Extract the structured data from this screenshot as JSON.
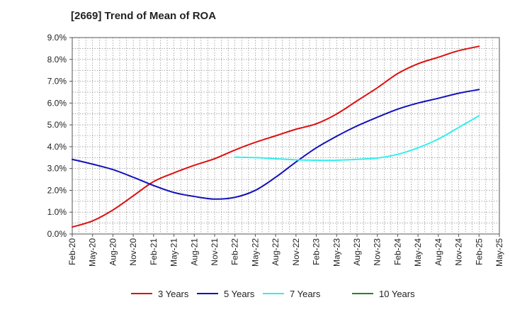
{
  "chart_data": {
    "type": "line",
    "title": "[2669]  Trend of Mean of ROA",
    "xlabel": "",
    "ylabel": "",
    "x_ticks": [
      "Feb-20",
      "May-20",
      "Aug-20",
      "Nov-20",
      "Feb-21",
      "May-21",
      "Aug-21",
      "Nov-21",
      "Feb-22",
      "May-22",
      "Aug-22",
      "Nov-22",
      "Feb-23",
      "May-23",
      "Aug-23",
      "Nov-23",
      "Feb-24",
      "May-24",
      "Aug-24",
      "Nov-24",
      "Feb-25",
      "May-25"
    ],
    "y_ticks": [
      "0.0%",
      "1.0%",
      "2.0%",
      "3.0%",
      "4.0%",
      "5.0%",
      "6.0%",
      "7.0%",
      "8.0%",
      "9.0%"
    ],
    "ylim": [
      0,
      9
    ],
    "grid": true,
    "legend_position": "bottom",
    "series": [
      {
        "name": "3 Years",
        "color": "#dd1111",
        "x": [
          "Feb-20",
          "May-20",
          "Aug-20",
          "Nov-20",
          "Feb-21",
          "May-21",
          "Aug-21",
          "Nov-21",
          "Feb-22",
          "May-22",
          "Aug-22",
          "Nov-22",
          "Feb-23",
          "May-23",
          "Aug-23",
          "Nov-23",
          "Feb-24",
          "May-24",
          "Aug-24",
          "Nov-24",
          "Feb-25"
        ],
        "values": [
          0.32,
          0.6,
          1.1,
          1.75,
          2.4,
          2.8,
          3.15,
          3.45,
          3.85,
          4.2,
          4.5,
          4.8,
          5.05,
          5.5,
          6.1,
          6.7,
          7.35,
          7.8,
          8.1,
          8.4,
          8.6
        ]
      },
      {
        "name": "5 Years",
        "color": "#1111bb",
        "x": [
          "Feb-20",
          "May-20",
          "Aug-20",
          "Nov-20",
          "Feb-21",
          "May-21",
          "Aug-21",
          "Nov-21",
          "Feb-22",
          "May-22",
          "Aug-22",
          "Nov-22",
          "Feb-23",
          "May-23",
          "Aug-23",
          "Nov-23",
          "Feb-24",
          "May-24",
          "Aug-24",
          "Nov-24",
          "Feb-25"
        ],
        "values": [
          3.42,
          3.2,
          2.95,
          2.6,
          2.22,
          1.9,
          1.72,
          1.6,
          1.68,
          2.0,
          2.6,
          3.3,
          3.95,
          4.48,
          4.95,
          5.35,
          5.72,
          6.0,
          6.22,
          6.45,
          6.62
        ]
      },
      {
        "name": "7 Years",
        "color": "#33eeee",
        "x": [
          "Feb-22",
          "May-22",
          "Aug-22",
          "Nov-22",
          "Feb-23",
          "May-23",
          "Aug-23",
          "Nov-23",
          "Feb-24",
          "May-24",
          "Aug-24",
          "Nov-24",
          "Feb-25"
        ],
        "values": [
          3.52,
          3.5,
          3.45,
          3.4,
          3.38,
          3.38,
          3.42,
          3.48,
          3.65,
          3.95,
          4.35,
          4.88,
          5.42
        ]
      },
      {
        "name": "10 Years",
        "color": "#228822",
        "x": [],
        "values": []
      }
    ]
  }
}
